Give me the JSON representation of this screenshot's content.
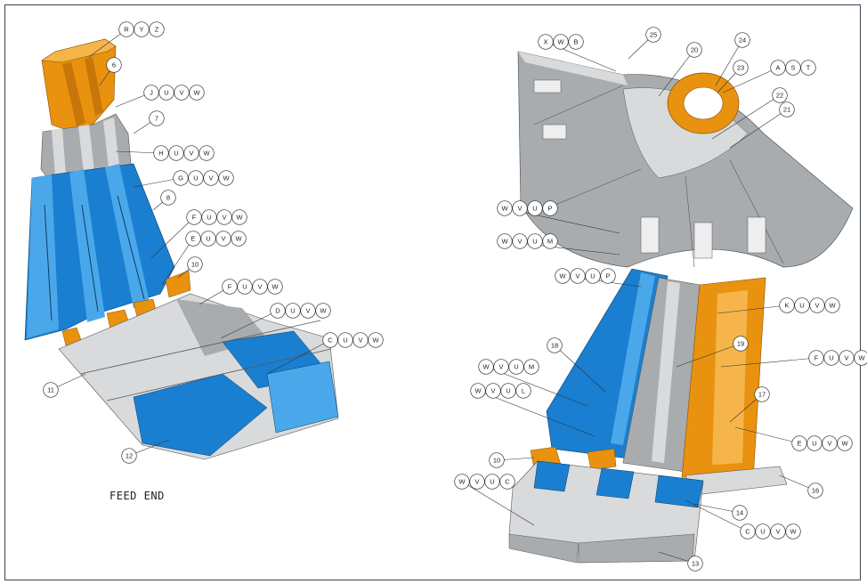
{
  "colors": {
    "blue": "#1a7fd0",
    "blue_light": "#4aa8ea",
    "orange": "#e8920f",
    "orange_light": "#f6b54a",
    "gray": "#a9acaf",
    "gray_light": "#d8dadc",
    "white": "#eeeeee"
  },
  "caption": "FEED END",
  "callouts": {
    "ryz": [
      "R",
      "Y",
      "Z"
    ],
    "n6": [
      "6"
    ],
    "juvw": [
      "J",
      "U",
      "V",
      "W"
    ],
    "n7": [
      "7"
    ],
    "huvw": [
      "H",
      "U",
      "V",
      "W"
    ],
    "guvw": [
      "G",
      "U",
      "V",
      "W"
    ],
    "n8": [
      "8"
    ],
    "fuvw_a": [
      "F",
      "U",
      "V",
      "W"
    ],
    "euvw_a": [
      "E",
      "U",
      "V",
      "W"
    ],
    "n10_a": [
      "10"
    ],
    "fuvw_b": [
      "F",
      "U",
      "V",
      "W"
    ],
    "duvw": [
      "D",
      "U",
      "V",
      "W"
    ],
    "cuvw_a": [
      "C",
      "U",
      "V",
      "W"
    ],
    "n11": [
      "11"
    ],
    "n12": [
      "12"
    ],
    "xwb": [
      "X",
      "W",
      "B"
    ],
    "n25": [
      "25"
    ],
    "n20": [
      "20"
    ],
    "n24": [
      "24"
    ],
    "n23": [
      "23"
    ],
    "ast": [
      "A",
      "S",
      "T"
    ],
    "n22": [
      "22"
    ],
    "n21": [
      "21"
    ],
    "wvup_a": [
      "W",
      "V",
      "U",
      "P"
    ],
    "wvum_a": [
      "W",
      "V",
      "U",
      "M"
    ],
    "wvup_b": [
      "W",
      "V",
      "U",
      "P"
    ],
    "kuvw": [
      "K",
      "U",
      "V",
      "W"
    ],
    "n18": [
      "18"
    ],
    "n19": [
      "19"
    ],
    "fuvw_c": [
      "F",
      "U",
      "V",
      "W"
    ],
    "wvum_b": [
      "W",
      "V",
      "U",
      "M"
    ],
    "n17": [
      "17"
    ],
    "wvul": [
      "W",
      "V",
      "U",
      "L"
    ],
    "euvw_b": [
      "E",
      "U",
      "V",
      "W"
    ],
    "n10_b": [
      "10"
    ],
    "n16": [
      "16"
    ],
    "wvuc": [
      "W",
      "V",
      "U",
      "C"
    ],
    "n14": [
      "14"
    ],
    "cuvw_b": [
      "C",
      "U",
      "V",
      "W"
    ],
    "n13": [
      "13"
    ]
  }
}
